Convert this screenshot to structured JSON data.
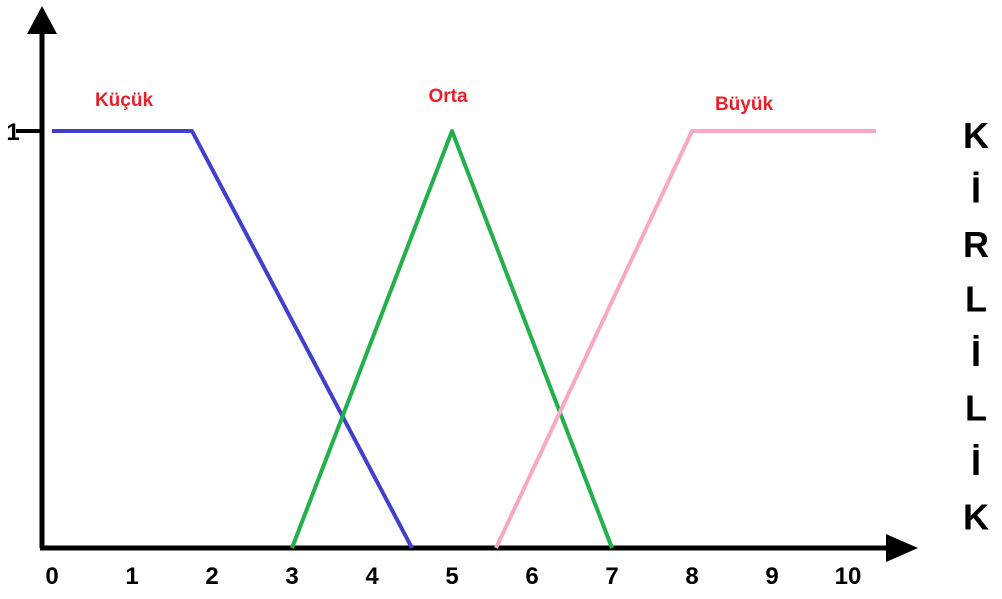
{
  "chart_data": {
    "type": "line",
    "x_ticks": [
      "0",
      "1",
      "2",
      "3",
      "4",
      "5",
      "6",
      "7",
      "8",
      "9",
      "10"
    ],
    "y_ticks": [
      "1"
    ],
    "xlim": [
      0,
      10.3
    ],
    "ylim": [
      0,
      1.0
    ],
    "grid": false,
    "series": [
      {
        "name": "Küçük",
        "color": "#4040cc",
        "x": [
          0,
          1.75,
          4.5
        ],
        "y": [
          1,
          1,
          0
        ],
        "label_at": [
          0.9,
          1.06
        ]
      },
      {
        "name": "Orta",
        "color": "#22b04a",
        "x": [
          3,
          5,
          7
        ],
        "y": [
          0,
          1,
          0
        ],
        "label_at": [
          4.95,
          1.07
        ]
      },
      {
        "name": "Büyük",
        "color": "#f8a8c4",
        "x": [
          5.55,
          8,
          10.3
        ],
        "y": [
          0,
          1,
          1
        ],
        "label_at": [
          8.65,
          1.05
        ]
      }
    ],
    "side_text": [
      "K",
      "İ",
      "R",
      "L",
      "İ",
      "L",
      "İ",
      "K"
    ],
    "label_color": "#e8202a"
  }
}
